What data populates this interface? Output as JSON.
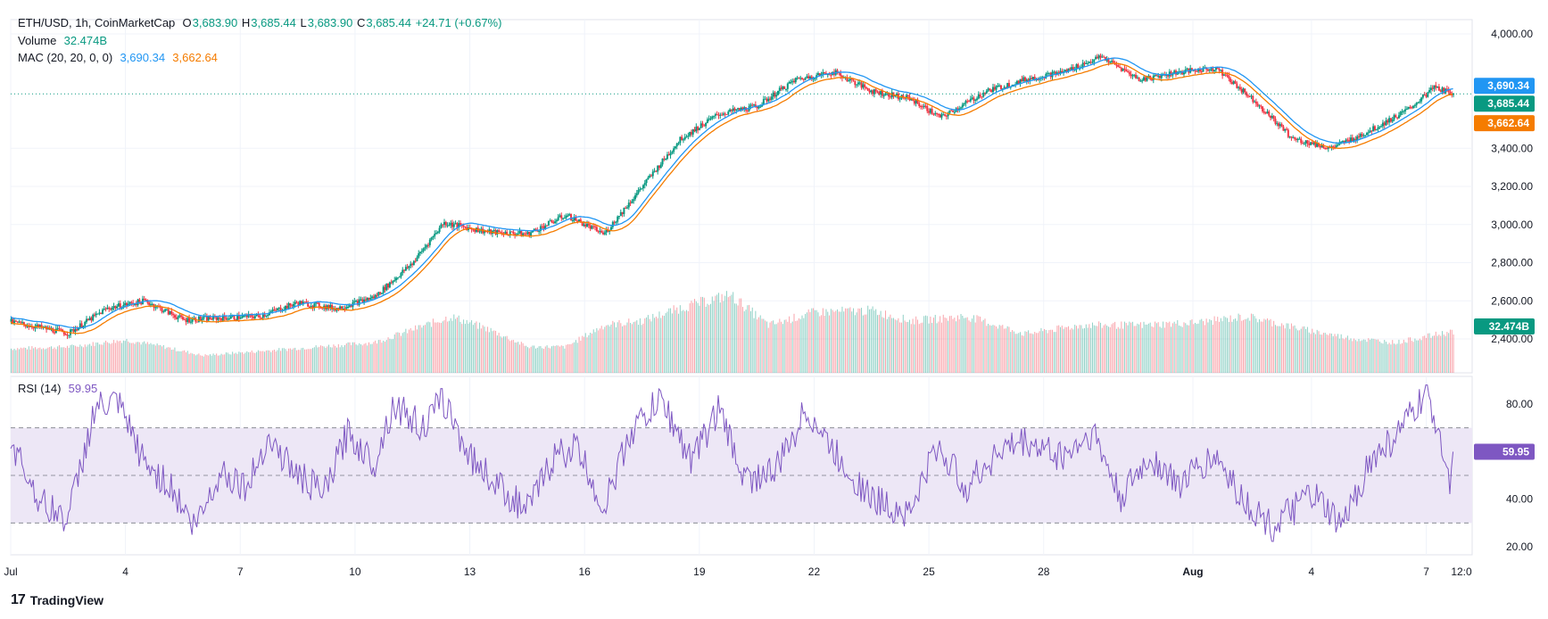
{
  "header": {
    "symbol": "ETH/USD, 1h, CoinMarketCap",
    "o_label": "O",
    "o_value": "3,683.90",
    "h_label": "H",
    "h_value": "3,685.44",
    "l_label": "L",
    "l_value": "3,683.90",
    "c_label": "C",
    "c_value": "3,685.44",
    "change": "+24.71 (+0.67%)",
    "volume_label": "Volume",
    "volume_value": "32.474B",
    "mac_label": "MAC (20, 20, 0, 0)",
    "mac_upper": "3,690.34",
    "mac_lower": "3,662.64",
    "rsi_label": "RSI (14)",
    "rsi_value": "59.95"
  },
  "price_tags": {
    "upper": "3,690.34",
    "close": "3,685.44",
    "lower": "3,662.64",
    "volume": "32.474B",
    "rsi": "59.95"
  },
  "footer": {
    "brand": "TradingView"
  },
  "colors": {
    "up": "#089981",
    "down": "#f23645",
    "mac_upper": "#2196f3",
    "mac_lower": "#f57c00",
    "rsi": "#7e57c2",
    "rsi_band": "#ede7f6"
  },
  "chart_data": [
    {
      "type": "candlestick",
      "title": "ETH/USD, 1h, CoinMarketCap",
      "x_ticks": [
        "Jul",
        "4",
        "7",
        "10",
        "13",
        "16",
        "19",
        "22",
        "25",
        "28",
        "Aug",
        "4",
        "7",
        "12:0"
      ],
      "y_ticks": [
        2400,
        2600,
        2800,
        3000,
        3200,
        3400,
        4000
      ],
      "ylim": [
        2200,
        4100
      ],
      "close_series_keypoints": [
        [
          0,
          2490
        ],
        [
          1.5,
          2430
        ],
        [
          2.5,
          2560
        ],
        [
          3.5,
          2600
        ],
        [
          4.5,
          2500
        ],
        [
          5.5,
          2510
        ],
        [
          6.5,
          2520
        ],
        [
          7.5,
          2590
        ],
        [
          8.5,
          2560
        ],
        [
          9.5,
          2620
        ],
        [
          10.5,
          2800
        ],
        [
          11.3,
          3010
        ],
        [
          12.5,
          2960
        ],
        [
          13.5,
          2950
        ],
        [
          14.5,
          3050
        ],
        [
          15.5,
          2950
        ],
        [
          16.5,
          3200
        ],
        [
          17.5,
          3450
        ],
        [
          18.5,
          3580
        ],
        [
          19.5,
          3620
        ],
        [
          20.5,
          3760
        ],
        [
          21.5,
          3800
        ],
        [
          22.5,
          3700
        ],
        [
          23.5,
          3660
        ],
        [
          24.3,
          3560
        ],
        [
          25.5,
          3700
        ],
        [
          26.5,
          3760
        ],
        [
          27.5,
          3800
        ],
        [
          28.5,
          3880
        ],
        [
          29.5,
          3760
        ],
        [
          30.5,
          3800
        ],
        [
          31.5,
          3820
        ],
        [
          32.5,
          3650
        ],
        [
          33.5,
          3450
        ],
        [
          34.5,
          3400
        ],
        [
          35.5,
          3490
        ],
        [
          36.5,
          3600
        ],
        [
          37.2,
          3720
        ],
        [
          37.7,
          3685
        ]
      ],
      "last_close": 3685.44
    },
    {
      "type": "line",
      "title": "MAC (20, 20, 0, 0)",
      "series": [
        {
          "name": "upper",
          "last": 3690.34
        },
        {
          "name": "lower",
          "last": 3662.64
        }
      ]
    },
    {
      "type": "bar",
      "title": "Volume",
      "last": "32.474B",
      "envelope_keypoints": [
        [
          0,
          0.28
        ],
        [
          1.5,
          0.3
        ],
        [
          3,
          0.38
        ],
        [
          4,
          0.3
        ],
        [
          5,
          0.2
        ],
        [
          6.5,
          0.25
        ],
        [
          8,
          0.3
        ],
        [
          9.5,
          0.35
        ],
        [
          11.5,
          0.65
        ],
        [
          12.5,
          0.5
        ],
        [
          13.5,
          0.3
        ],
        [
          14.5,
          0.3
        ],
        [
          15.5,
          0.55
        ],
        [
          16.5,
          0.6
        ],
        [
          17.5,
          0.75
        ],
        [
          18.8,
          0.9
        ],
        [
          19.8,
          0.55
        ],
        [
          21,
          0.7
        ],
        [
          22.5,
          0.72
        ],
        [
          23.5,
          0.6
        ],
        [
          25,
          0.65
        ],
        [
          26.5,
          0.45
        ],
        [
          28,
          0.55
        ],
        [
          29.5,
          0.55
        ],
        [
          31,
          0.58
        ],
        [
          32.3,
          0.65
        ],
        [
          33.8,
          0.5
        ],
        [
          35,
          0.4
        ],
        [
          36.2,
          0.35
        ],
        [
          37.7,
          0.48
        ]
      ]
    },
    {
      "type": "line",
      "title": "RSI (14)",
      "y_ticks": [
        20,
        40,
        80
      ],
      "bands": [
        30,
        50,
        70
      ],
      "ylim": [
        15,
        90
      ],
      "last": 59.95,
      "keypoints": [
        [
          0,
          65
        ],
        [
          0.8,
          38
        ],
        [
          1.5,
          32
        ],
        [
          2.2,
          78
        ],
        [
          2.8,
          80
        ],
        [
          3.5,
          55
        ],
        [
          4.2,
          45
        ],
        [
          4.8,
          28
        ],
        [
          5.5,
          52
        ],
        [
          6.2,
          45
        ],
        [
          6.7,
          66
        ],
        [
          7.5,
          50
        ],
        [
          8.2,
          42
        ],
        [
          8.8,
          68
        ],
        [
          9.5,
          55
        ],
        [
          10,
          80
        ],
        [
          10.8,
          70
        ],
        [
          11.3,
          82
        ],
        [
          12,
          58
        ],
        [
          12.8,
          45
        ],
        [
          13.5,
          35
        ],
        [
          14.2,
          58
        ],
        [
          14.8,
          62
        ],
        [
          15.5,
          36
        ],
        [
          16.2,
          68
        ],
        [
          17,
          82
        ],
        [
          17.8,
          56
        ],
        [
          18.5,
          78
        ],
        [
          19.2,
          48
        ],
        [
          20,
          52
        ],
        [
          20.8,
          78
        ],
        [
          21.5,
          60
        ],
        [
          22.5,
          40
        ],
        [
          23.5,
          34
        ],
        [
          24.2,
          62
        ],
        [
          25,
          45
        ],
        [
          25.8,
          60
        ],
        [
          26.5,
          64
        ],
        [
          27.5,
          58
        ],
        [
          28.3,
          68
        ],
        [
          29,
          40
        ],
        [
          29.8,
          58
        ],
        [
          30.5,
          46
        ],
        [
          31.5,
          58
        ],
        [
          32.3,
          38
        ],
        [
          33,
          28
        ],
        [
          34,
          42
        ],
        [
          34.8,
          28
        ],
        [
          35.5,
          55
        ],
        [
          36.3,
          68
        ],
        [
          37,
          84
        ],
        [
          37.4,
          66
        ],
        [
          37.6,
          46
        ],
        [
          37.7,
          59.95
        ]
      ]
    }
  ]
}
